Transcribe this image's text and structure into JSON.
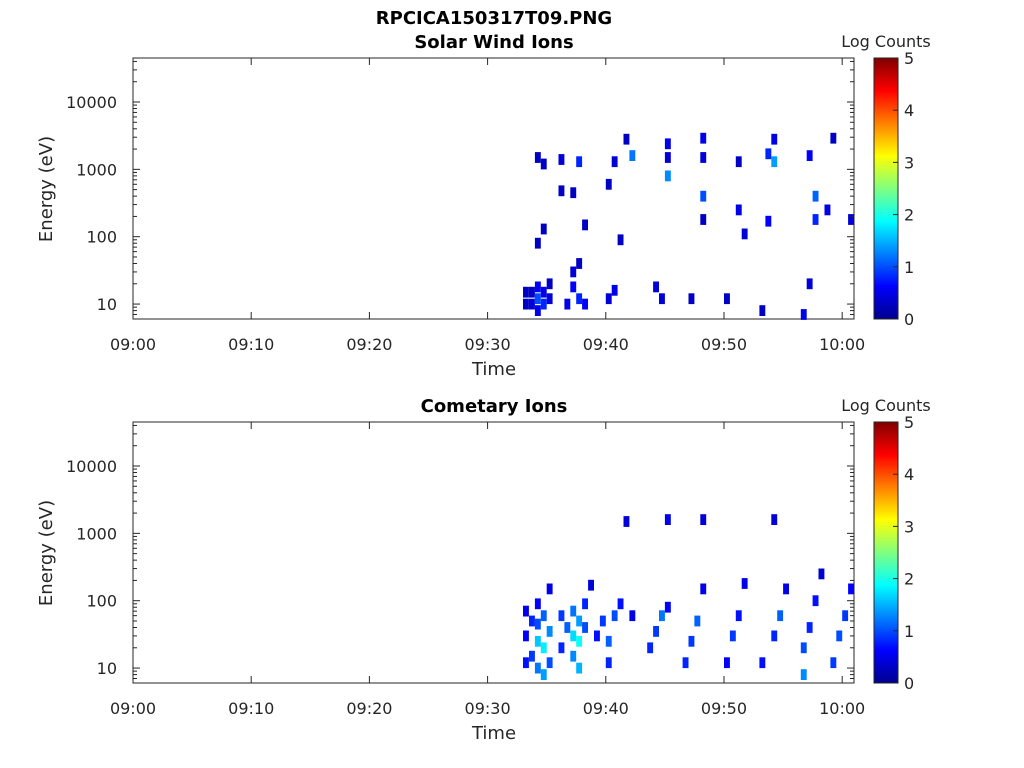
{
  "figure_title": "RPCICA150317T09.PNG",
  "colormap": [
    "#00008f",
    "#0000ff",
    "#0080ff",
    "#00ffff",
    "#80ff80",
    "#ffff00",
    "#ff8000",
    "#ff0000",
    "#800000"
  ],
  "chart_data": [
    {
      "type": "heatmap",
      "title": "Solar Wind Ions",
      "xlabel": "Time",
      "ylabel": "Energy (eV)",
      "x_ticks": [
        "09:00",
        "09:10",
        "09:20",
        "09:30",
        "09:40",
        "09:50",
        "10:00"
      ],
      "x_range_minutes": [
        0,
        61
      ],
      "y_scale": "log",
      "y_ticks": [
        "10",
        "100",
        "1000",
        "10000"
      ],
      "y_range": [
        6,
        45000
      ],
      "colorbar": {
        "label": "Log Counts",
        "ticks": [
          "0",
          "1",
          "2",
          "3",
          "4",
          "5"
        ],
        "range": [
          0,
          5
        ]
      },
      "cells": [
        [
          33,
          10,
          0.3
        ],
        [
          33,
          15,
          0.3
        ],
        [
          33.5,
          10,
          0.4
        ],
        [
          33.5,
          15,
          0.3
        ],
        [
          34,
          8,
          0.5
        ],
        [
          34,
          12,
          1.0
        ],
        [
          34,
          18,
          0.6
        ],
        [
          34.5,
          10,
          0.8
        ],
        [
          34.5,
          15,
          0.5
        ],
        [
          35,
          12,
          0.4
        ],
        [
          35,
          20,
          0.3
        ],
        [
          34,
          80,
          0.3
        ],
        [
          34.5,
          130,
          0.3
        ],
        [
          34,
          1500,
          0.3
        ],
        [
          34.5,
          1200,
          0.3
        ],
        [
          36,
          1400,
          0.4
        ],
        [
          36,
          480,
          0.3
        ],
        [
          37,
          450,
          0.3
        ],
        [
          37,
          18,
          0.6
        ],
        [
          37,
          30,
          0.4
        ],
        [
          37.5,
          12,
          0.8
        ],
        [
          37.5,
          40,
          0.3
        ],
        [
          36.5,
          10,
          0.5
        ],
        [
          38,
          10,
          0.6
        ],
        [
          37.5,
          1300,
          0.8
        ],
        [
          38,
          150,
          0.3
        ],
        [
          40,
          12,
          0.4
        ],
        [
          40.5,
          16,
          0.5
        ],
        [
          40.5,
          1300,
          0.4
        ],
        [
          40,
          600,
          0.3
        ],
        [
          41,
          90,
          0.3
        ],
        [
          41.5,
          2800,
          0.3
        ],
        [
          42,
          1600,
          1.2
        ],
        [
          44,
          18,
          0.4
        ],
        [
          44.5,
          12,
          0.4
        ],
        [
          45,
          2400,
          0.5
        ],
        [
          45,
          800,
          1.3
        ],
        [
          45,
          1500,
          0.4
        ],
        [
          47,
          12,
          0.3
        ],
        [
          48,
          2900,
          0.5
        ],
        [
          48,
          1500,
          0.4
        ],
        [
          48,
          400,
          1.0
        ],
        [
          48,
          180,
          0.3
        ],
        [
          50,
          12,
          0.3
        ],
        [
          51,
          1300,
          0.3
        ],
        [
          51,
          250,
          0.5
        ],
        [
          51.5,
          110,
          0.4
        ],
        [
          53,
          8,
          0.3
        ],
        [
          53.5,
          1700,
          0.8
        ],
        [
          54,
          1300,
          1.4
        ],
        [
          53.5,
          170,
          0.6
        ],
        [
          54,
          2800,
          0.5
        ],
        [
          56.5,
          7,
          0.5
        ],
        [
          57,
          20,
          0.4
        ],
        [
          57,
          1600,
          0.6
        ],
        [
          57.5,
          400,
          1.1
        ],
        [
          57.5,
          180,
          0.8
        ],
        [
          58.5,
          250,
          0.5
        ],
        [
          59,
          2900,
          0.3
        ],
        [
          60.5,
          180,
          0.4
        ]
      ]
    },
    {
      "type": "heatmap",
      "title": "Cometary Ions",
      "xlabel": "Time",
      "ylabel": "Energy (eV)",
      "x_ticks": [
        "09:00",
        "09:10",
        "09:20",
        "09:30",
        "09:40",
        "09:50",
        "10:00"
      ],
      "x_range_minutes": [
        0,
        61
      ],
      "y_scale": "log",
      "y_ticks": [
        "10",
        "100",
        "1000",
        "10000"
      ],
      "y_range": [
        6,
        45000
      ],
      "colorbar": {
        "label": "Log Counts",
        "ticks": [
          "0",
          "1",
          "2",
          "3",
          "4",
          "5"
        ],
        "range": [
          0,
          5
        ]
      },
      "cells": [
        [
          33,
          12,
          0.7
        ],
        [
          33,
          30,
          0.6
        ],
        [
          33,
          70,
          0.5
        ],
        [
          33.5,
          15,
          0.9
        ],
        [
          33.5,
          50,
          0.8
        ],
        [
          34,
          10,
          1.2
        ],
        [
          34,
          25,
          1.6
        ],
        [
          34,
          45,
          1.0
        ],
        [
          34,
          90,
          0.6
        ],
        [
          34.5,
          8,
          1.4
        ],
        [
          34.5,
          20,
          1.8
        ],
        [
          34.5,
          60,
          1.1
        ],
        [
          35,
          12,
          1.0
        ],
        [
          35,
          35,
          1.3
        ],
        [
          35,
          150,
          0.5
        ],
        [
          36,
          20,
          0.8
        ],
        [
          36,
          60,
          0.9
        ],
        [
          36.5,
          40,
          1.1
        ],
        [
          37,
          15,
          1.3
        ],
        [
          37,
          30,
          1.7
        ],
        [
          37,
          70,
          1.2
        ],
        [
          37.5,
          10,
          1.5
        ],
        [
          37.5,
          25,
          1.9
        ],
        [
          37.5,
          50,
          1.4
        ],
        [
          38,
          40,
          1.0
        ],
        [
          38,
          90,
          0.8
        ],
        [
          38.5,
          170,
          0.4
        ],
        [
          39,
          30,
          0.7
        ],
        [
          39.5,
          50,
          0.9
        ],
        [
          40,
          12,
          0.8
        ],
        [
          40,
          25,
          1.1
        ],
        [
          40.5,
          60,
          1.0
        ],
        [
          41,
          90,
          0.7
        ],
        [
          41.5,
          1500,
          0.4
        ],
        [
          42,
          60,
          0.5
        ],
        [
          43.5,
          20,
          0.8
        ],
        [
          44,
          35,
          0.9
        ],
        [
          44.5,
          60,
          1.2
        ],
        [
          45,
          1600,
          0.5
        ],
        [
          45,
          80,
          0.6
        ],
        [
          46.5,
          12,
          0.8
        ],
        [
          47,
          25,
          0.9
        ],
        [
          47.5,
          50,
          1.1
        ],
        [
          48,
          1600,
          0.4
        ],
        [
          48,
          150,
          0.5
        ],
        [
          50,
          12,
          0.6
        ],
        [
          50.5,
          30,
          0.9
        ],
        [
          51,
          60,
          0.7
        ],
        [
          51.5,
          180,
          0.5
        ],
        [
          53,
          12,
          0.7
        ],
        [
          54,
          30,
          0.8
        ],
        [
          54,
          1600,
          0.4
        ],
        [
          54.5,
          60,
          1.1
        ],
        [
          55,
          150,
          0.5
        ],
        [
          56.5,
          8,
          1.3
        ],
        [
          56.5,
          20,
          1.0
        ],
        [
          57,
          40,
          0.8
        ],
        [
          57.5,
          100,
          0.7
        ],
        [
          58,
          250,
          0.4
        ],
        [
          59,
          12,
          0.9
        ],
        [
          59.5,
          30,
          1.0
        ],
        [
          60,
          60,
          0.9
        ],
        [
          60.5,
          150,
          0.6
        ]
      ]
    }
  ]
}
